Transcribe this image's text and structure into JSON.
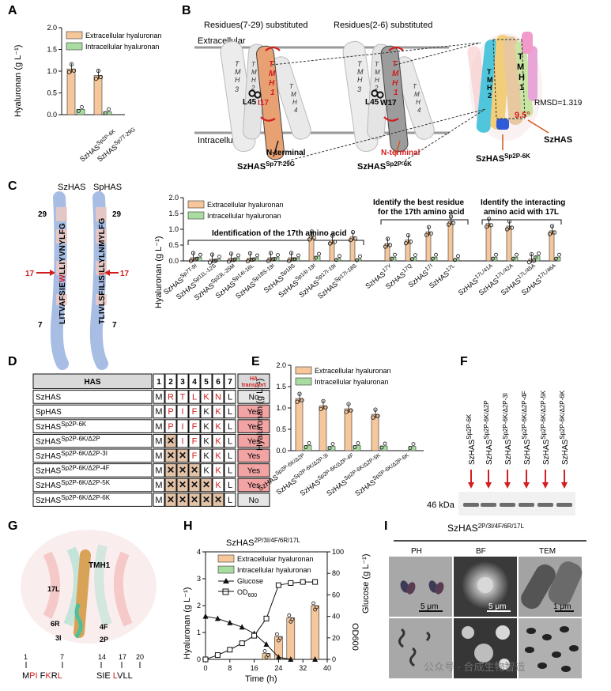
{
  "colors": {
    "extra": "#f6c79b",
    "intra": "#a9dca0",
    "red": "#d21e1e",
    "blue": "#9fb6dc",
    "pink": "#f2a3a3"
  },
  "panel_letters": [
    "A",
    "B",
    "C",
    "D",
    "E",
    "F",
    "G",
    "H",
    "I"
  ],
  "legend": {
    "extra": "Extracellular hyaluronan",
    "intra": "Intracellular hyaluronan"
  },
  "ylabel_ha": "Hyaluronan (g L⁻¹)",
  "panelA": {
    "categories": [
      "SzHAS^Sp2P-6K",
      "SzHAS^Sp7T-29G"
    ],
    "extra": [
      1.05,
      0.9
    ],
    "intra": [
      0.12,
      0.07
    ],
    "ticks": [
      "0.0",
      "0.5",
      "1.0",
      "1.5",
      "2.0"
    ]
  },
  "panelB": {
    "title1": "Residues(7-29) substituted",
    "title2": "Residues(2-6) substituted",
    "extracellular": "Extracellular",
    "intracellular": "Intracellular",
    "tmh": [
      "TMH3",
      "TMH2",
      "TMH1",
      "TMH4"
    ],
    "res1_a": "L45",
    "res1_b": "I17",
    "res2_a": "L45",
    "res2_b": "W17",
    "nterm": "N-terminal",
    "name1": "SzHAS^Sp7T-29G",
    "name2": "SzHAS^Sp2P-6K",
    "name3": "SzHAS^Sp2P-6K",
    "rmsd": "RMSD=1.319",
    "angle": "9.5°",
    "szhas": "SzHAS"
  },
  "panelC": {
    "helix1_title": "SzHAS",
    "helix2_title": "SpHAS",
    "seq1": "LITVAFSIEWLLIYVNYLFG",
    "seq2": "TLIVLSFILISILLYLNMYLFG",
    "n29": "29",
    "n7": "7",
    "n17": "17",
    "group1": "Identification of the 17th amino acid",
    "group2": "Identify the best residue for the 17th amino acid",
    "group3": "Identify the interacting amino acid with 17L",
    "categories": [
      "SzHAS^Sp7T-9I",
      "SzHAS^Sp11L-12S",
      "SzHAS^Sp23L-25M",
      "SzHAS^Sp14I-16L",
      "SzHAS^Sp18S-19I",
      "SzHAS^Sp18S",
      "SzHAS^Sp14I-19I",
      "SzHAS^Sp17I-19I",
      "SzHAS^Sp17I-18S",
      "SzHAS^17Y",
      "SzHAS^17Q",
      "SzHAS^17I",
      "SzHAS^17L",
      "SzHAS^17L/41A",
      "SzHAS^17L/42A",
      "SzHAS^17L/45A",
      "SzHAS^17L/46A"
    ],
    "extra": [
      0.1,
      0.05,
      0.08,
      0.09,
      0.1,
      0.1,
      0.78,
      0.65,
      0.76,
      0.55,
      0.66,
      0.92,
      1.25,
      1.18,
      1.1,
      0.06,
      0.95
    ],
    "intra": [
      0.12,
      0.06,
      0.1,
      0.1,
      0.11,
      0.1,
      0.15,
      0.08,
      0.07,
      0.12,
      0.11,
      0.12,
      0.08,
      0.12,
      0.12,
      0.16,
      0.12
    ],
    "ticks": [
      "0.0",
      "0.5",
      "1.0",
      "1.5",
      "2.0"
    ]
  },
  "panelD": {
    "header": [
      "HAS",
      "1",
      "2",
      "3",
      "4",
      "5",
      "6",
      "7",
      "HA transport"
    ],
    "rows": [
      {
        "name": "SzHAS",
        "res": [
          "M",
          "R",
          "T",
          "L",
          "K",
          "N",
          "L"
        ],
        "transport": "No"
      },
      {
        "name": "SpHAS",
        "res": [
          "M",
          "P",
          "I",
          "F",
          "K",
          "K",
          "L"
        ],
        "transport": "Yes"
      },
      {
        "name": "SzHAS^Sp2P-6K",
        "res": [
          "M",
          "P",
          "I",
          "F",
          "K",
          "K",
          "L"
        ],
        "transport": "Yes"
      },
      {
        "name": "SzHAS^Sp2P-6K/Δ2P",
        "res": [
          "M",
          "✕",
          "I",
          "F",
          "K",
          "K",
          "L"
        ],
        "transport": "Yes"
      },
      {
        "name": "SzHAS^Sp2P-6K/Δ2P-3I",
        "res": [
          "M",
          "✕",
          "✕",
          "F",
          "K",
          "K",
          "L"
        ],
        "transport": "Yes"
      },
      {
        "name": "SzHAS^Sp2P-6K/Δ2P-4F",
        "res": [
          "M",
          "✕",
          "✕",
          "✕",
          "K",
          "K",
          "L"
        ],
        "transport": "Yes"
      },
      {
        "name": "SzHAS^Sp2P-6K/Δ2P-5K",
        "res": [
          "M",
          "✕",
          "✕",
          "✕",
          "✕",
          "K",
          "L"
        ],
        "transport": "Yes"
      },
      {
        "name": "SzHAS^Sp2P-6K/Δ2P-6K",
        "res": [
          "M",
          "✕",
          "✕",
          "✕",
          "✕",
          "✕",
          "L"
        ],
        "transport": "No"
      }
    ]
  },
  "panelE": {
    "categories": [
      "SzHAS^Sp2P-6K/Δ2P",
      "SzHAS^Sp2P-6K/Δ2P-3I",
      "SzHAS^Sp2P-6K/Δ2P-4F",
      "SzHAS^Sp2P-6K/Δ2P-5K",
      "SzHAS^Sp2P-6K/Δ2P-6K"
    ],
    "extra": [
      1.22,
      1.05,
      0.98,
      0.85,
      0.0
    ],
    "intra": [
      0.12,
      0.1,
      0.12,
      0.11,
      0.1
    ],
    "ticks": [
      "0.0",
      "0.5",
      "1.0",
      "1.5",
      "2.0"
    ]
  },
  "panelF": {
    "lanes": [
      "SzHAS^Sp2P-6K",
      "SzHAS^Sp2P-6K/Δ2P",
      "SzHAS^Sp2P-6K/Δ2P-3I",
      "SzHAS^Sp2P-6K/Δ2P-4F",
      "SzHAS^Sp2P-6K/Δ2P-5K",
      "SzHAS^Sp2P-6K/Δ2P-6K"
    ],
    "marker": "46 kDa"
  },
  "panelG": {
    "tmh": "TMH1",
    "labels": [
      "17L",
      "6R",
      "4F",
      "3I",
      "2P"
    ],
    "pos": [
      "1",
      "7",
      "14",
      "17",
      "20"
    ],
    "seq1": "MPI FKRL",
    "seq2": "SIE LVLL"
  },
  "panelH": {
    "title": "SzHAS^2P/3I/4F/6R/17L",
    "legend": [
      "Extracellular hyaluronan",
      "Intracellular hyaluronan",
      "Glucose",
      "OD600"
    ],
    "xlabel": "Time (h)",
    "ylabel_left": "Hyaluronan (g L⁻¹)",
    "ylabel_right1": "OD600",
    "ylabel_right2": "Glucose (g L⁻¹)",
    "xticks": [
      "0",
      "8",
      "16",
      "24",
      "32",
      "40"
    ],
    "yticks_left": [
      "0",
      "1",
      "2",
      "3",
      "4"
    ],
    "yticks_right": [
      "0",
      "20",
      "40",
      "60",
      "80",
      "100"
    ],
    "bars_x": [
      20,
      24,
      28,
      36
    ],
    "bars": [
      0.22,
      0.85,
      1.55,
      2.0
    ],
    "glucose_x": [
      0,
      4,
      8,
      12,
      16,
      20,
      24,
      28,
      36
    ],
    "glucose": [
      40,
      38,
      34,
      30,
      24,
      14,
      2,
      0,
      0
    ],
    "od_x": [
      0,
      4,
      8,
      12,
      16,
      20,
      24,
      28,
      32,
      36
    ],
    "od": [
      0,
      4,
      9,
      15,
      22,
      38,
      69,
      71,
      72,
      72
    ]
  },
  "panelI": {
    "title": "SzHAS^2P/3I/4F/6R/17L",
    "cols": [
      "PH",
      "BF",
      "TEM"
    ],
    "scale1": "5 μm",
    "scale2": "5 μm",
    "scale3": "1 μm",
    "watermark": "公众号 · 合成生物智造"
  }
}
